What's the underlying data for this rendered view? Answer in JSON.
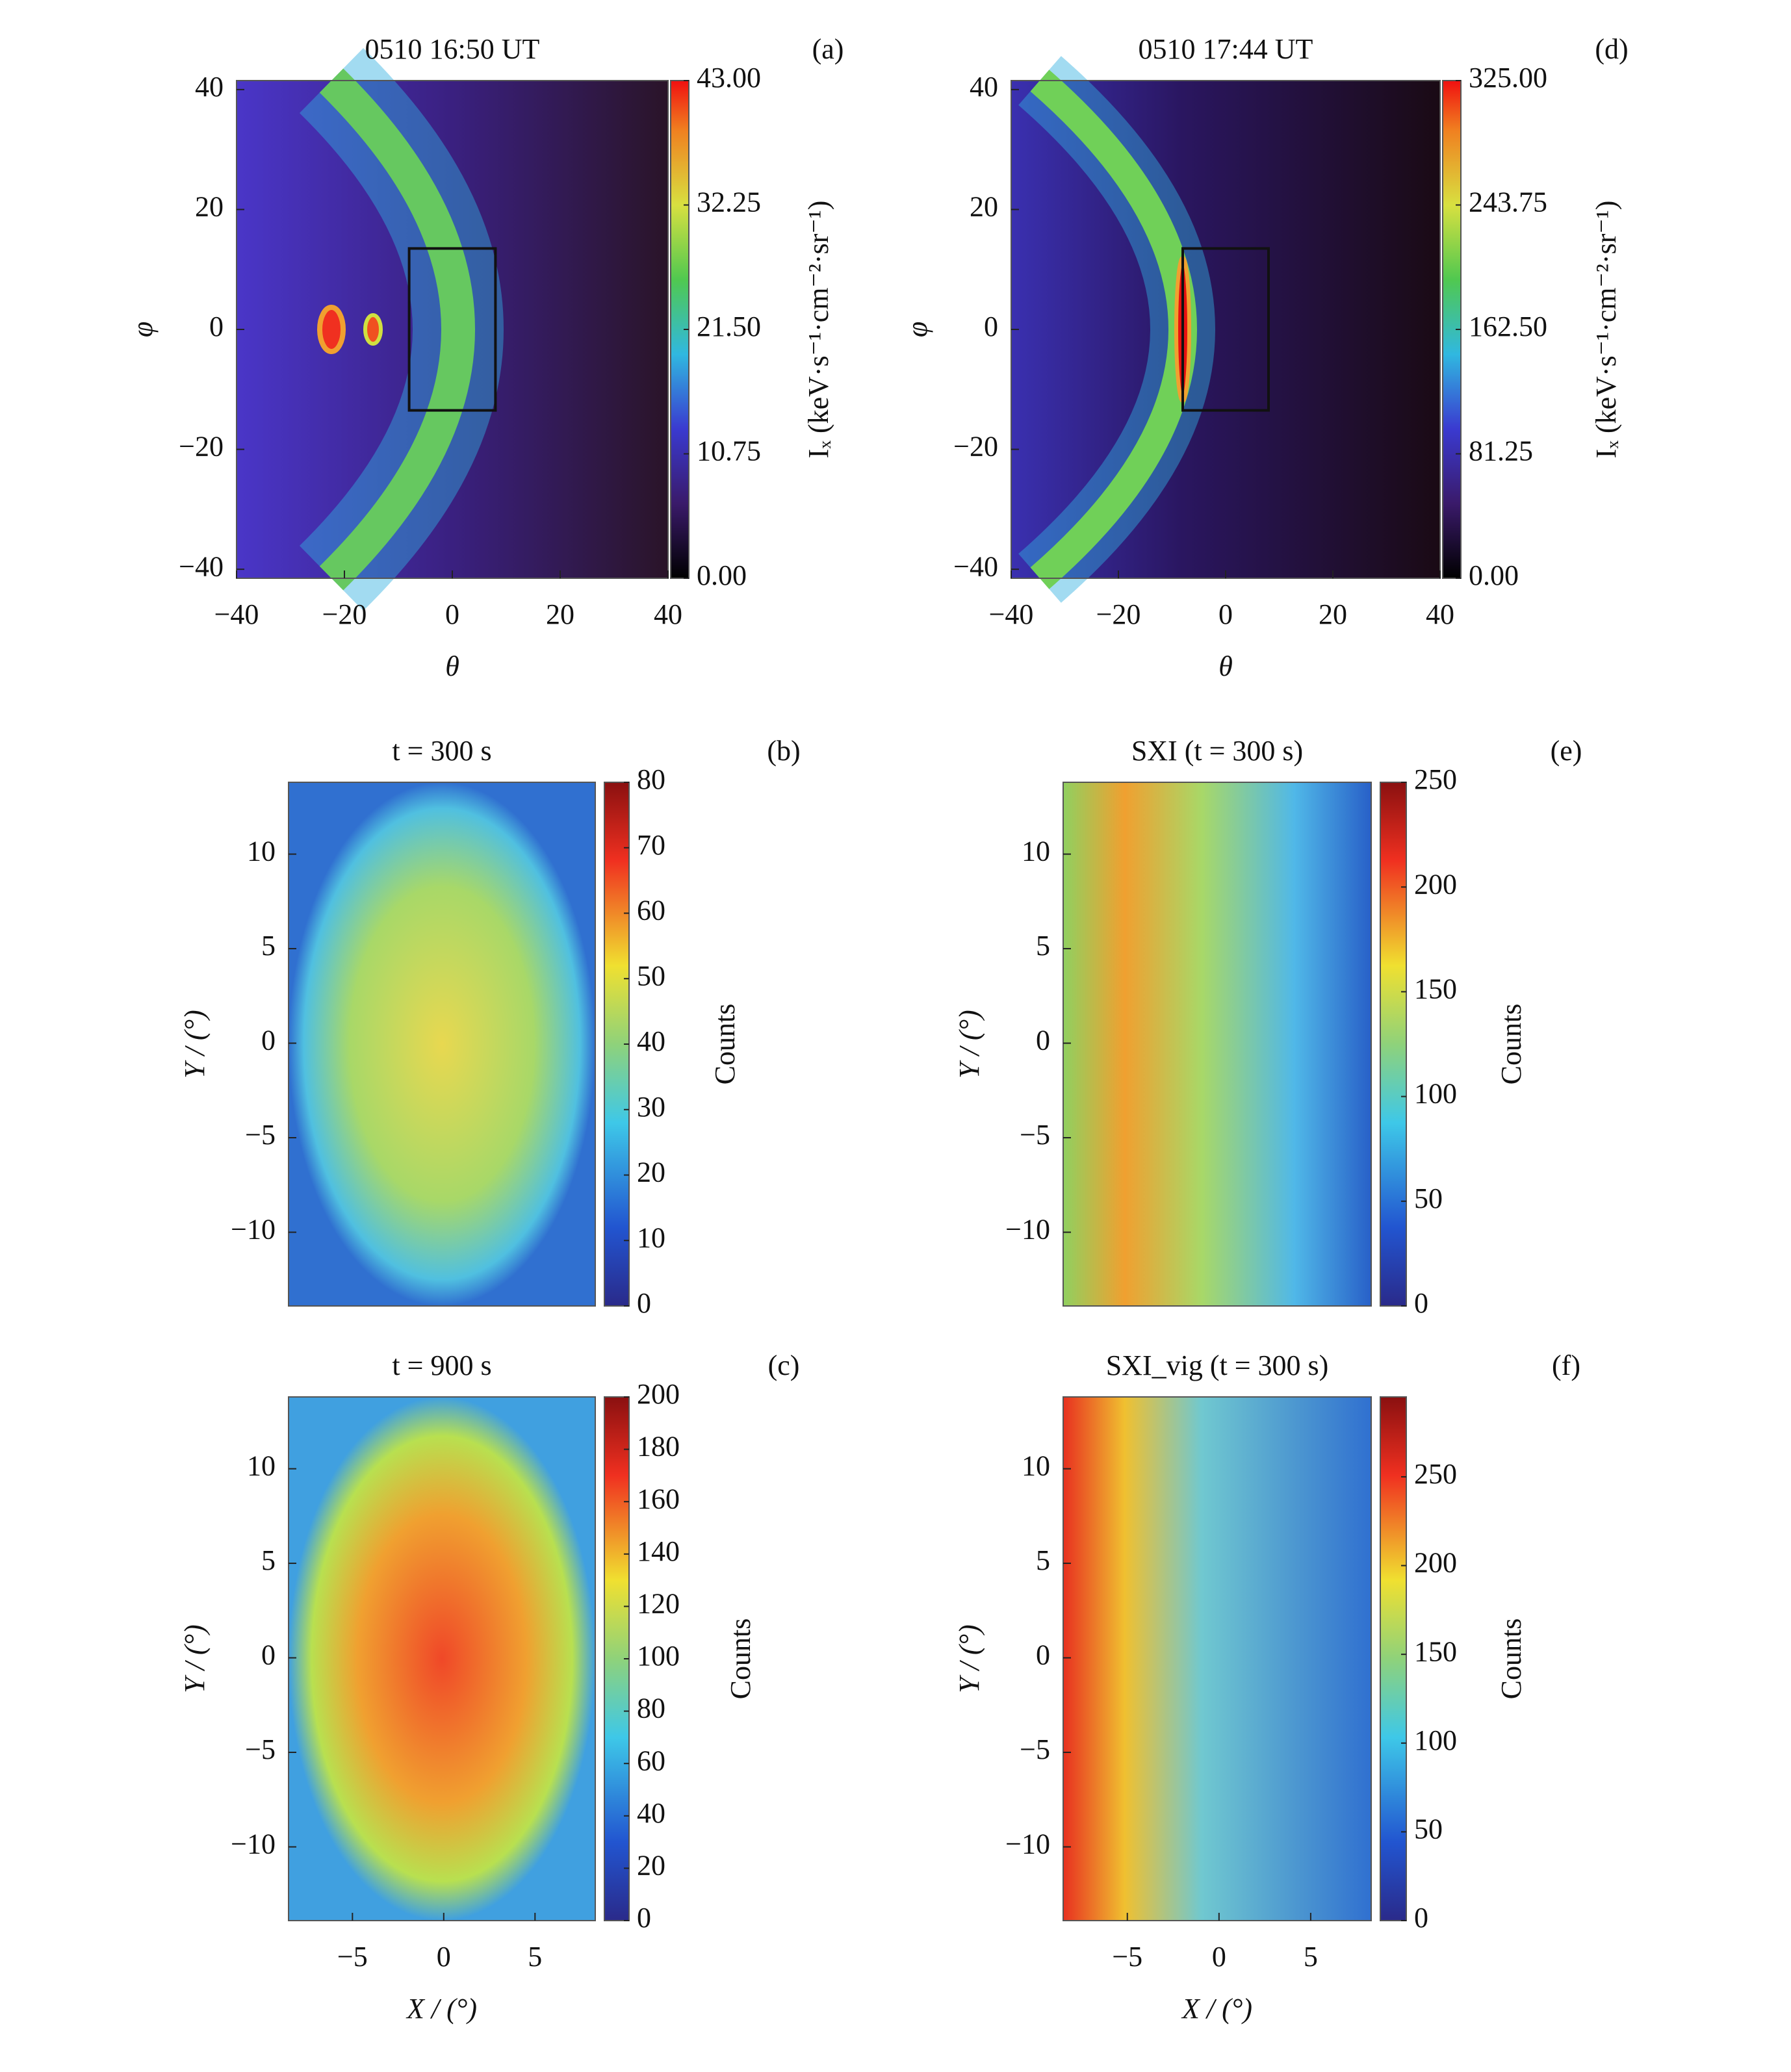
{
  "chart_data": [
    {
      "type": "heatmap",
      "title": "0510  16:50 UT",
      "panel_label": "(a)",
      "xlabel": "θ",
      "ylabel": "φ",
      "xlim": [
        -40,
        40
      ],
      "ylim": [
        -41.5,
        41.5
      ],
      "xticks": [
        {
          "value": -40,
          "label": "−40"
        },
        {
          "value": -20,
          "label": "−20"
        },
        0,
        20,
        40
      ],
      "yticks": [
        {
          "value": -40,
          "label": "−40"
        },
        {
          "value": -20,
          "label": "−20"
        },
        0,
        20,
        40
      ],
      "box": {
        "xlim": [
          -8,
          8
        ],
        "ylim": [
          -13.5,
          13.5
        ]
      },
      "colorbar": {
        "label": "Iₓ (keV·s⁻¹·cm⁻²·sr⁻¹)",
        "lim": [
          0,
          43
        ],
        "ticks": [
          {
            "value": 0,
            "label": "0.00"
          },
          {
            "value": 10.75,
            "label": "10.75"
          },
          {
            "value": 21.5,
            "label": "21.50"
          },
          {
            "value": 32.25,
            "label": "32.25"
          },
          {
            "value": 43,
            "label": "43.00"
          }
        ]
      }
    },
    {
      "type": "heatmap",
      "title": "0510  17:44 UT",
      "panel_label": "(d)",
      "xlabel": "θ",
      "ylabel": "φ",
      "xlim": [
        -40,
        40
      ],
      "ylim": [
        -41.5,
        41.5
      ],
      "xticks": [
        {
          "value": -40,
          "label": "−40"
        },
        {
          "value": -20,
          "label": "−20"
        },
        0,
        20,
        40
      ],
      "yticks": [
        {
          "value": -40,
          "label": "−40"
        },
        {
          "value": -20,
          "label": "−20"
        },
        0,
        20,
        40
      ],
      "box": {
        "xlim": [
          -8,
          8
        ],
        "ylim": [
          -13.5,
          13.5
        ]
      },
      "colorbar": {
        "label": "Iₓ (keV·s⁻¹·cm⁻²·sr⁻¹)",
        "lim": [
          0,
          325
        ],
        "ticks": [
          {
            "value": 0,
            "label": "0.00"
          },
          {
            "value": 81.25,
            "label": "81.25"
          },
          {
            "value": 162.5,
            "label": "162.50"
          },
          {
            "value": 243.75,
            "label": "243.75"
          },
          {
            "value": 325,
            "label": "325.00"
          }
        ]
      }
    },
    {
      "type": "heatmap",
      "title": "t = 300 s",
      "panel_label": "(b)",
      "ylabel": "Y / (°)",
      "xlim": [
        -8.5,
        8.3
      ],
      "ylim": [
        -13.9,
        13.8
      ],
      "yticks": [
        {
          "value": -10,
          "label": "−10"
        },
        {
          "value": -5,
          "label": "−5"
        },
        0,
        5,
        10
      ],
      "colorbar": {
        "label": "Counts",
        "lim": [
          0,
          80
        ],
        "ticks": [
          0,
          10,
          20,
          30,
          40,
          50,
          60,
          70,
          80
        ]
      }
    },
    {
      "type": "heatmap",
      "title": "t = 900 s",
      "panel_label": "(c)",
      "xlabel": "X / (°)",
      "ylabel": "Y / (°)",
      "xlim": [
        -8.5,
        8.3
      ],
      "ylim": [
        -13.9,
        13.8
      ],
      "xticks": [
        {
          "value": -5,
          "label": "−5"
        },
        0,
        5
      ],
      "yticks": [
        {
          "value": -10,
          "label": "−10"
        },
        {
          "value": -5,
          "label": "−5"
        },
        0,
        5,
        10
      ],
      "colorbar": {
        "label": "Counts",
        "lim": [
          0,
          200
        ],
        "ticks": [
          0,
          20,
          40,
          60,
          80,
          100,
          120,
          140,
          160,
          180,
          200
        ]
      }
    },
    {
      "type": "heatmap",
      "title": "SXI (t = 300 s)",
      "panel_label": "(e)",
      "ylabel": "Y / (°)",
      "xlim": [
        -8.5,
        8.3
      ],
      "ylim": [
        -13.9,
        13.8
      ],
      "yticks": [
        {
          "value": -10,
          "label": "−10"
        },
        {
          "value": -5,
          "label": "−5"
        },
        0,
        5,
        10
      ],
      "colorbar": {
        "label": "Counts",
        "lim": [
          0,
          250
        ],
        "ticks": [
          0,
          50,
          100,
          150,
          200,
          250
        ]
      }
    },
    {
      "type": "heatmap",
      "title": "SXI_vig (t = 300 s)",
      "panel_label": "(f)",
      "xlabel": "X / (°)",
      "ylabel": "Y / (°)",
      "xlim": [
        -8.5,
        8.3
      ],
      "ylim": [
        -13.9,
        13.8
      ],
      "xticks": [
        {
          "value": -5,
          "label": "−5"
        },
        0,
        5
      ],
      "yticks": [
        {
          "value": -10,
          "label": "−10"
        },
        {
          "value": -5,
          "label": "−5"
        },
        0,
        5,
        10
      ],
      "colorbar": {
        "label": "Counts",
        "lim": [
          0,
          295
        ],
        "ticks": [
          0,
          50,
          100,
          150,
          200,
          250
        ]
      }
    }
  ]
}
